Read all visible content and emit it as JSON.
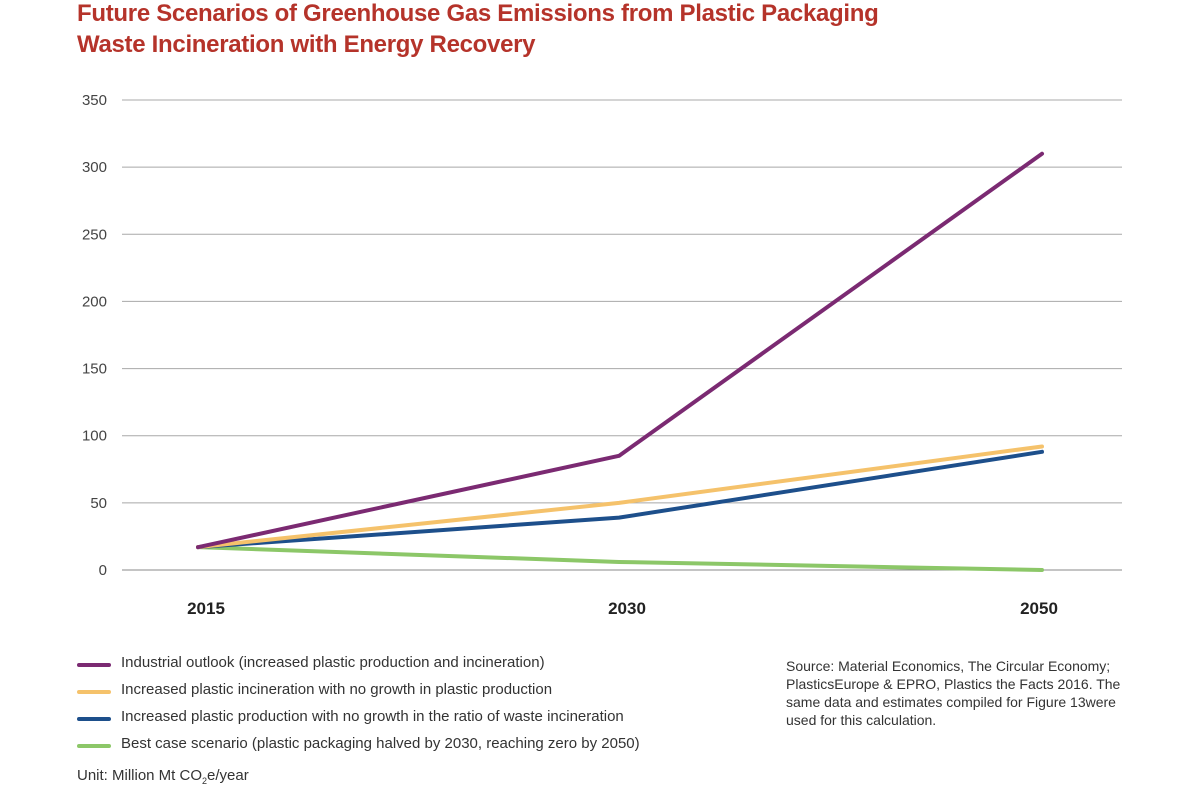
{
  "title": {
    "line1": "Future Scenarios of Greenhouse Gas Emissions from Plastic Packaging",
    "line2": "Waste Incineration with Energy Recovery"
  },
  "unit": {
    "prefix": "Unit: Million Mt CO",
    "sub": "2",
    "suffix": "e/year"
  },
  "source_note": "Source: Material Economics, The Circular Economy; PlasticsEurope & EPRO, Plastics the Facts 2016. The same data and estimates compiled for Figure 13were used for this calculation.",
  "chart_data": {
    "type": "line",
    "x": [
      "2015",
      "2030",
      "2050"
    ],
    "ylim": [
      0,
      350
    ],
    "yticks": [
      0,
      50,
      100,
      150,
      200,
      250,
      300,
      350
    ],
    "grid": true,
    "legend_position": "bottom",
    "series": [
      {
        "name": "Industrial outlook (increased plastic production and incineration)",
        "color": "#7b2a72",
        "values": [
          17,
          85,
          310
        ]
      },
      {
        "name": "Increased plastic incineration with no growth in plastic production",
        "color": "#f5c26b",
        "values": [
          17,
          50,
          92
        ]
      },
      {
        "name": "Increased plastic production with no growth in the ratio of waste incineration",
        "color": "#1d4f8b",
        "values": [
          17,
          39,
          88
        ]
      },
      {
        "name": "Best case scenario (plastic packaging halved by 2030, reaching zero by 2050)",
        "color": "#8cc768",
        "values": [
          17,
          6,
          0
        ]
      }
    ]
  }
}
